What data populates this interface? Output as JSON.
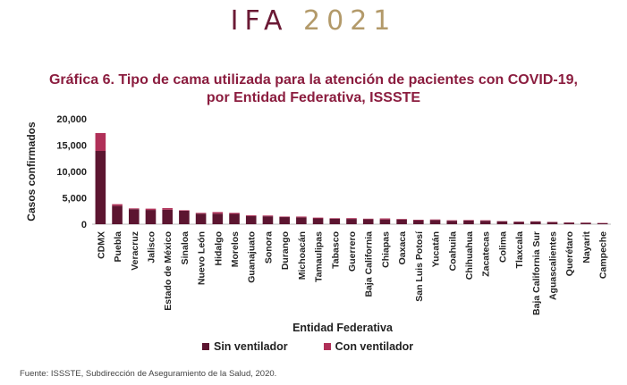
{
  "header": {
    "prefix": "IFA",
    "year": "2021"
  },
  "title": {
    "line1": "Gráfica 6. Tipo de cama utilizada para la atención de pacientes con COVID-19,",
    "line2": "por Entidad Federativa, ISSSTE"
  },
  "source": "Fuente: ISSSTE, Subdirección de Aseguramiento de la Salud, 2020.",
  "colors": {
    "sin": "#5c1530",
    "con": "#b03058"
  },
  "chart_data": {
    "type": "bar",
    "stacked": true,
    "xlabel": "Entidad Federativa",
    "ylabel": "Casos confirmados",
    "ylim": [
      0,
      20000
    ],
    "yticks": [
      "0",
      "5,000",
      "10,000",
      "15,000",
      "20,000"
    ],
    "ytick_values": [
      0,
      5000,
      10000,
      15000,
      20000
    ],
    "legend_position": "bottom",
    "categories": [
      "CDMX",
      "Puebla",
      "Veracruz",
      "Jalisco",
      "Estado de México",
      "Sinaloa",
      "Nuevo León",
      "Hidalgo",
      "Morelos",
      "Guanajuato",
      "Sonora",
      "Durango",
      "Michoacán",
      "Tamaulipas",
      "Tabasco",
      "Guerrero",
      "Baja California",
      "Chiapas",
      "Oaxaca",
      "San Luis Potosí",
      "Yucatán",
      "Coahuila",
      "Chihuahua",
      "Zacatecas",
      "Colima",
      "Tlaxcala",
      "Baja California Sur",
      "Aguascalientes",
      "Querétaro",
      "Nayarit",
      "Campeche"
    ],
    "series": [
      {
        "name": "Sin ventilador",
        "values": [
          13900,
          3500,
          2850,
          2700,
          2750,
          2550,
          2000,
          2000,
          1950,
          1550,
          1500,
          1350,
          1300,
          1100,
          1050,
          1000,
          950,
          900,
          900,
          750,
          800,
          650,
          700,
          650,
          550,
          450,
          500,
          400,
          300,
          250,
          200
        ]
      },
      {
        "name": "Con ventilador",
        "values": [
          3400,
          300,
          150,
          250,
          300,
          100,
          150,
          300,
          200,
          150,
          150,
          100,
          150,
          150,
          100,
          150,
          100,
          200,
          100,
          100,
          100,
          100,
          100,
          100,
          50,
          50,
          50,
          50,
          50,
          50,
          50
        ]
      }
    ]
  }
}
